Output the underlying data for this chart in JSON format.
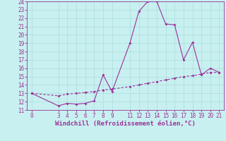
{
  "title": "",
  "xlabel": "Windchill (Refroidissement éolien,°C)",
  "background_color": "#c8f0f0",
  "line_color": "#993399",
  "xlim": [
    -0.5,
    21.5
  ],
  "ylim": [
    11,
    24
  ],
  "x_ticks": [
    0,
    3,
    4,
    5,
    6,
    7,
    8,
    9,
    11,
    12,
    13,
    14,
    15,
    16,
    17,
    18,
    19,
    20,
    21
  ],
  "y_ticks": [
    11,
    12,
    13,
    14,
    15,
    16,
    17,
    18,
    19,
    20,
    21,
    22,
    23,
    24
  ],
  "line1_x": [
    0,
    3,
    4,
    5,
    6,
    7,
    8,
    9,
    11,
    12,
    13,
    14,
    15,
    16,
    17,
    18,
    19,
    20,
    21
  ],
  "line1_y": [
    13.0,
    11.5,
    11.8,
    11.7,
    11.8,
    12.1,
    15.2,
    13.2,
    19.0,
    22.8,
    24.0,
    24.0,
    21.3,
    21.2,
    17.0,
    19.1,
    15.2,
    16.0,
    15.5
  ],
  "line2_x": [
    0,
    3,
    4,
    5,
    6,
    7,
    8,
    9,
    11,
    12,
    13,
    14,
    15,
    16,
    17,
    18,
    19,
    20,
    21
  ],
  "line2_y": [
    13.0,
    12.7,
    12.9,
    13.0,
    13.1,
    13.2,
    13.4,
    13.5,
    13.8,
    14.0,
    14.2,
    14.4,
    14.6,
    14.8,
    15.0,
    15.1,
    15.3,
    15.5,
    15.5
  ],
  "grid_color": "#aadddd",
  "tick_fontsize": 5.5,
  "xlabel_fontsize": 6.5
}
